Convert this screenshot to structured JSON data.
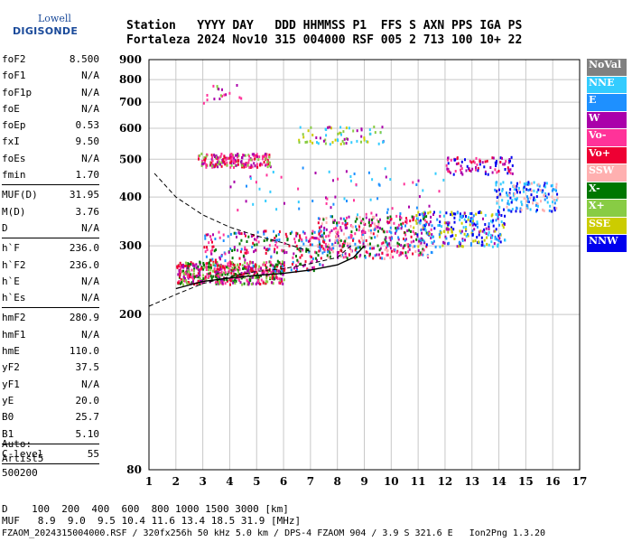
{
  "header": {
    "row1": "Station   YYYY DAY   DDD HHMMSS P1  FFS S AXN PPS IGA PS",
    "row2": "Fortaleza 2024 Nov10 315 004000 RSF 005 2 713 100 10+ 22"
  },
  "logo": {
    "top": "Lowell",
    "bottom": "DIGISONDE"
  },
  "params": [
    [
      {
        "k": "foF2",
        "v": "8.500"
      },
      {
        "k": "foF1",
        "v": "N/A"
      },
      {
        "k": "foF1p",
        "v": "N/A"
      },
      {
        "k": "foE",
        "v": "N/A"
      },
      {
        "k": "foEp",
        "v": "0.53"
      },
      {
        "k": "fxI",
        "v": "9.50"
      },
      {
        "k": "foEs",
        "v": "N/A"
      },
      {
        "k": "fmin",
        "v": "1.70"
      }
    ],
    [
      {
        "k": "MUF(D)",
        "v": "31.95"
      },
      {
        "k": "M(D)",
        "v": "3.76"
      },
      {
        "k": "D",
        "v": "N/A"
      }
    ],
    [
      {
        "k": "h`F",
        "v": "236.0"
      },
      {
        "k": "h`F2",
        "v": "236.0"
      },
      {
        "k": "h`E",
        "v": "N/A"
      },
      {
        "k": "h`Es",
        "v": "N/A"
      }
    ],
    [
      {
        "k": "hmF2",
        "v": "280.9"
      },
      {
        "k": "hmF1",
        "v": "N/A"
      },
      {
        "k": "hmE",
        "v": "110.0"
      },
      {
        "k": "yF2",
        "v": "37.5"
      },
      {
        "k": "yF1",
        "v": "N/A"
      },
      {
        "k": "yE",
        "v": "20.0"
      },
      {
        "k": "B0",
        "v": "25.7"
      },
      {
        "k": "B1",
        "v": "5.10"
      }
    ],
    [
      {
        "k": "C-level",
        "v": "55"
      }
    ]
  ],
  "auto": {
    "line1": "Auto:",
    "line2": "Artist5",
    "line3": "500200"
  },
  "bottom": {
    "d_row": "D    100  200  400  600  800 1000 1500 3000 [km]",
    "muf_row": "MUF   8.9  9.0  9.5 10.4 11.6 13.4 18.5 31.9 [MHz]",
    "file_row": "FZAOM_2024315004000.RSF / 320fx256h 50 kHz 5.0 km / DPS-4 FZAOM 904 / 3.9 S 321.6 E   Ion2Png 1.3.20"
  },
  "legend": [
    {
      "label": "NoVal",
      "color": "#808080",
      "text": "#ffffff"
    },
    {
      "label": "NNE",
      "color": "#33ccff",
      "text": "#ffffff"
    },
    {
      "label": "E",
      "color": "#1e90ff",
      "text": "#ffffff"
    },
    {
      "label": "W",
      "color": "#aa00aa",
      "text": "#ffffff"
    },
    {
      "label": "Vo-",
      "color": "#ff3399",
      "text": "#ffffff"
    },
    {
      "label": "Vo+",
      "color": "#ee0033",
      "text": "#ffffff"
    },
    {
      "label": "SSW",
      "color": "#ffb0b0",
      "text": "#ffffff"
    },
    {
      "label": "X-",
      "color": "#007700",
      "text": "#ffffff"
    },
    {
      "label": "X+",
      "color": "#88cc44",
      "text": "#ffffff"
    },
    {
      "label": "SSE",
      "color": "#cccc00",
      "text": "#ffffff"
    },
    {
      "label": "NNW",
      "color": "#0000ee",
      "text": "#ffffff"
    }
  ],
  "chart_data": {
    "type": "scatter",
    "title": "",
    "xlabel": "",
    "ylabel": "",
    "xlim": [
      1,
      17
    ],
    "ylim": [
      80,
      900
    ],
    "y_scale": "log",
    "x_ticks": [
      1,
      2,
      3,
      4,
      5,
      6,
      7,
      8,
      9,
      10,
      11,
      12,
      13,
      14,
      15,
      16,
      17
    ],
    "y_ticks": [
      80,
      200,
      300,
      400,
      500,
      600,
      700,
      800,
      900
    ],
    "grid": true,
    "legend_position": "right",
    "clusters": [
      {
        "x0": 2.0,
        "x1": 6.0,
        "y0": 240,
        "y1": 275,
        "n": 520,
        "colors": [
          "#ff3399",
          "#ee0033",
          "#aa00aa",
          "#88cc44",
          "#007700"
        ]
      },
      {
        "x0": 3.0,
        "x1": 7.5,
        "y0": 260,
        "y1": 330,
        "n": 260,
        "colors": [
          "#ff3399",
          "#aa00aa",
          "#ee0033",
          "#007700",
          "#1e90ff"
        ]
      },
      {
        "x0": 7.2,
        "x1": 11.5,
        "y0": 280,
        "y1": 360,
        "n": 420,
        "colors": [
          "#ff3399",
          "#ee0033",
          "#aa00aa",
          "#007700",
          "#1e90ff",
          "#ffb0b0"
        ]
      },
      {
        "x0": 10.8,
        "x1": 14.2,
        "y0": 300,
        "y1": 370,
        "n": 260,
        "colors": [
          "#33ccff",
          "#1e90ff",
          "#0000ee",
          "#aa00aa",
          "#cccc00"
        ]
      },
      {
        "x0": 13.8,
        "x1": 16.2,
        "y0": 370,
        "y1": 440,
        "n": 160,
        "colors": [
          "#33ccff",
          "#1e90ff",
          "#ffb0b0",
          "#0000ee"
        ]
      },
      {
        "x0": 2.8,
        "x1": 5.5,
        "y0": 480,
        "y1": 520,
        "n": 200,
        "colors": [
          "#ee0033",
          "#ff3399",
          "#aa00aa",
          "#88cc44"
        ]
      },
      {
        "x0": 12.0,
        "x1": 14.5,
        "y0": 460,
        "y1": 510,
        "n": 90,
        "colors": [
          "#aa00aa",
          "#ff3399",
          "#ee0033",
          "#0000ee"
        ]
      },
      {
        "x0": 6.5,
        "x1": 9.8,
        "y0": 550,
        "y1": 610,
        "n": 70,
        "colors": [
          "#aa00aa",
          "#88cc44",
          "#cccc00",
          "#33ccff"
        ]
      },
      {
        "x0": 3.0,
        "x1": 4.5,
        "y0": 700,
        "y1": 780,
        "n": 18,
        "colors": [
          "#88cc44",
          "#ff3399",
          "#aa00aa"
        ]
      },
      {
        "x0": 4.0,
        "x1": 12.0,
        "y0": 360,
        "y1": 480,
        "n": 70,
        "colors": [
          "#aa00aa",
          "#33ccff",
          "#ff3399",
          "#1e90ff"
        ]
      }
    ],
    "lines": [
      {
        "name": "",
        "style": "dashed",
        "points": [
          [
            1.2,
            460
          ],
          [
            2,
            400
          ],
          [
            3,
            360
          ],
          [
            4,
            335
          ],
          [
            5,
            318
          ],
          [
            6,
            305
          ],
          [
            7,
            290
          ]
        ]
      },
      {
        "name": "",
        "style": "dashed",
        "points": [
          [
            1,
            210
          ],
          [
            2,
            225
          ],
          [
            3,
            240
          ],
          [
            4,
            250
          ],
          [
            5,
            258
          ],
          [
            6,
            262
          ],
          [
            7,
            270
          ],
          [
            8,
            280
          ],
          [
            8.5,
            300
          ]
        ]
      },
      {
        "name": "",
        "style": "solid",
        "points": [
          [
            2,
            233
          ],
          [
            2.5,
            238
          ],
          [
            3,
            243
          ],
          [
            4,
            248
          ],
          [
            5,
            252
          ],
          [
            6,
            255
          ],
          [
            7,
            260
          ],
          [
            8,
            268
          ],
          [
            8.6,
            280
          ],
          [
            9.0,
            300
          ]
        ]
      }
    ]
  }
}
